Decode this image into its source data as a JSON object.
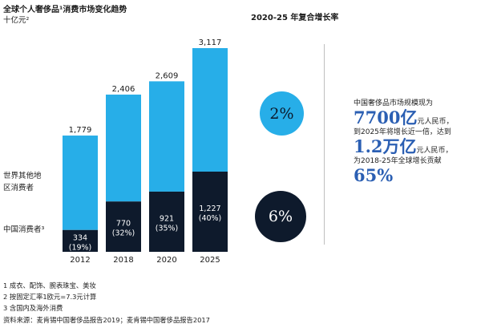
{
  "header": {
    "title": "全球个人奢侈品¹消费市场变化趋势",
    "unit": "十亿元²",
    "cagr_title": "2020-25 年复合增长率"
  },
  "legend": {
    "rest_of_world": [
      "世界其他地",
      "区消费者"
    ],
    "china": "中国消费者³"
  },
  "chart_data": {
    "type": "bar",
    "stacked": true,
    "categories": [
      "2012",
      "2018",
      "2020",
      "2025"
    ],
    "series": [
      {
        "name": "中国消费者",
        "values": [
          334,
          770,
          921,
          1227
        ],
        "labels": [
          "334",
          "770",
          "921",
          "1,227"
        ],
        "shares": [
          "(19%)",
          "(32%)",
          "(35%)",
          "(40%)"
        ],
        "color": "#0e1a2c"
      },
      {
        "name": "世界其他地区消费者",
        "values": [
          1445,
          1636,
          1688,
          1890
        ],
        "color": "#27aee8"
      }
    ],
    "totals": [
      1779,
      2406,
      2609,
      3117
    ],
    "total_labels": [
      "1,779",
      "2,406",
      "2,609",
      "3,117"
    ],
    "ylim": [
      0,
      3117
    ],
    "grid": false
  },
  "cagr": {
    "rest_of_world": "2%",
    "china": "6%"
  },
  "side_note": {
    "line1": "中国奢侈品市场规模现为",
    "value1": "7700亿",
    "unit1": "元人民币，",
    "line2": "到2025年将增长近一倍，达到",
    "value2": "1.2万亿",
    "unit2": "元人民币，",
    "line3": "为2018-25年全球增长贡献",
    "value3": "65%"
  },
  "footnotes": [
    "1 成衣、配饰、腕表珠宝、美妆",
    "2 按固定汇率1欧元=7.3元计算",
    "3 含国内及海外消费",
    "资料来源：麦肯锡中国奢侈品报告2019；麦肯锡中国奢侈品报告2017"
  ],
  "colors": {
    "rest_of_world": "#27aee8",
    "china": "#0e1a2c",
    "highlight": "#2b5fb3"
  }
}
